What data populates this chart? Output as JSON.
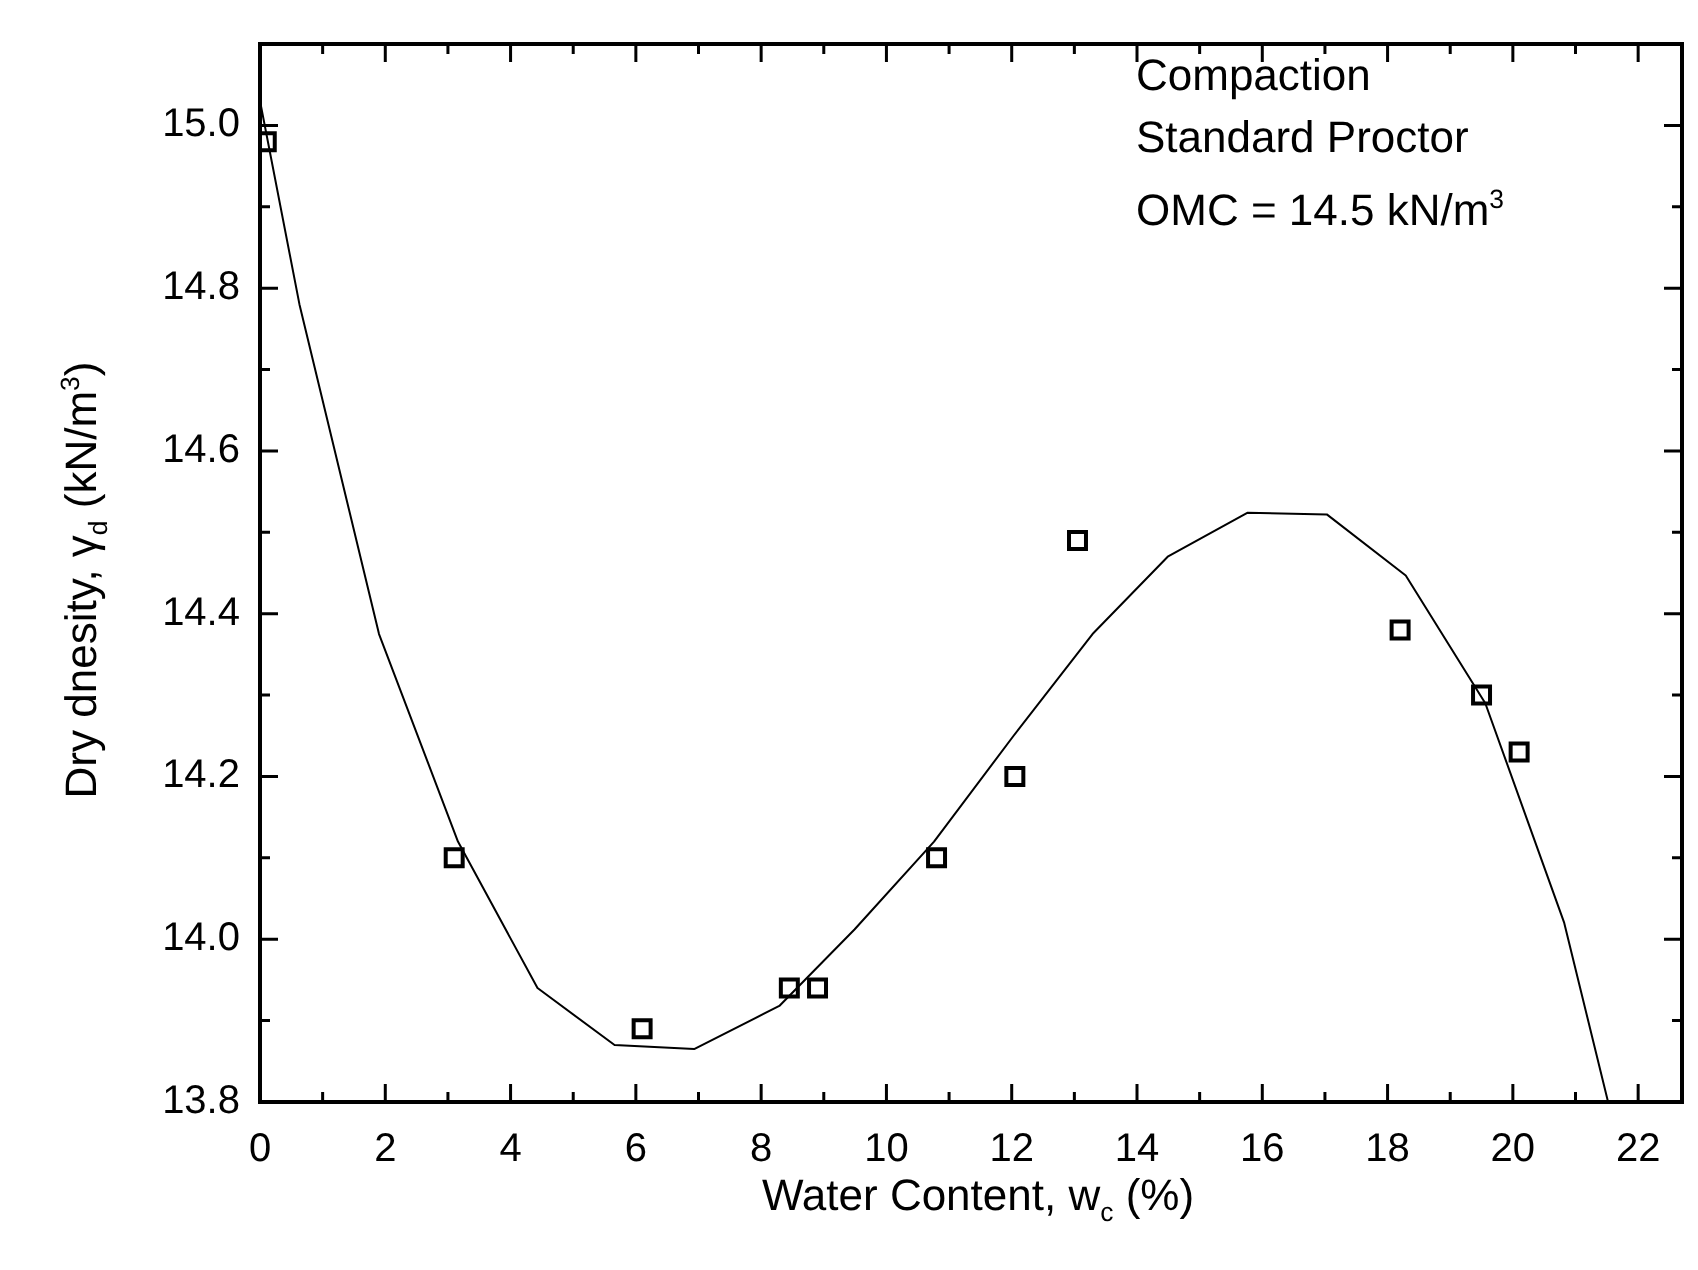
{
  "chart_data": {
    "type": "scatter",
    "xlabel": "Water Content, w$_{c}$ (%)",
    "ylabel": "Dry dnesity, γ$_{d}$ (kN/m$^{3}$)",
    "annotations": [
      "Compaction",
      "Standard Proctor",
      "OMC = 14.5 kN/m$^{3}$"
    ],
    "xlim": [
      0,
      22.7
    ],
    "ylim": [
      13.8,
      15.1
    ],
    "xticks": [
      0,
      {
        "value": 1,
        "label": null
      },
      2,
      {
        "value": 3,
        "label": null
      },
      4,
      {
        "value": 5,
        "label": null
      },
      6,
      {
        "value": 7,
        "label": null
      },
      8,
      {
        "value": 9,
        "label": null
      },
      10,
      {
        "value": 11,
        "label": null
      },
      12,
      {
        "value": 13,
        "label": null
      },
      14,
      {
        "value": 15,
        "label": null
      },
      16,
      {
        "value": 17,
        "label": null
      },
      18,
      {
        "value": 19,
        "label": null
      },
      20,
      {
        "value": 21,
        "label": null
      },
      22
    ],
    "yticks": [
      {
        "value": 13.8,
        "label": "13.8"
      },
      {
        "value": 13.9,
        "label": null
      },
      {
        "value": 14,
        "label": "14.0"
      },
      {
        "value": 14.1,
        "label": null
      },
      {
        "value": 14.2,
        "label": "14.2"
      },
      {
        "value": 14.3,
        "label": null
      },
      {
        "value": 14.4,
        "label": "14.4"
      },
      {
        "value": 14.5,
        "label": null
      },
      {
        "value": 14.6,
        "label": "14.6"
      },
      {
        "value": 14.7,
        "label": null
      },
      {
        "value": 14.8,
        "label": "14.8"
      },
      {
        "value": 14.9,
        "label": null
      },
      {
        "value": 15,
        "label": "15.0"
      }
    ],
    "grid": false,
    "legend": false,
    "series": [
      {
        "marker": "square",
        "color": "#000000",
        "x": [
          0.1,
          3.1,
          6.1,
          8.45,
          8.9,
          10.8,
          12.05,
          13.05,
          18.2,
          19.5,
          20.1
        ],
        "values": [
          14.98,
          14.1,
          13.89,
          13.94,
          13.94,
          14.1,
          14.2,
          14.49,
          14.38,
          14.3,
          14.23
        ]
      },
      {
        "type": "line",
        "marker": "none",
        "line_style": "solid",
        "color": "#000000",
        "x": [
          0,
          0.63,
          1.9,
          3.16,
          4.43,
          5.66,
          6.93,
          8.29,
          9.49,
          10.76,
          12.03,
          13.29,
          14.49,
          15.76,
          17.03,
          18.29,
          19.56,
          20.82,
          21.52
        ],
        "values": [
          15.03,
          14.78,
          14.375,
          14.12,
          13.94,
          13.87,
          13.865,
          13.918,
          14.012,
          14.12,
          14.25,
          14.375,
          14.47,
          14.524,
          14.522,
          14.447,
          14.29,
          14.02,
          13.8
        ]
      }
    ]
  }
}
